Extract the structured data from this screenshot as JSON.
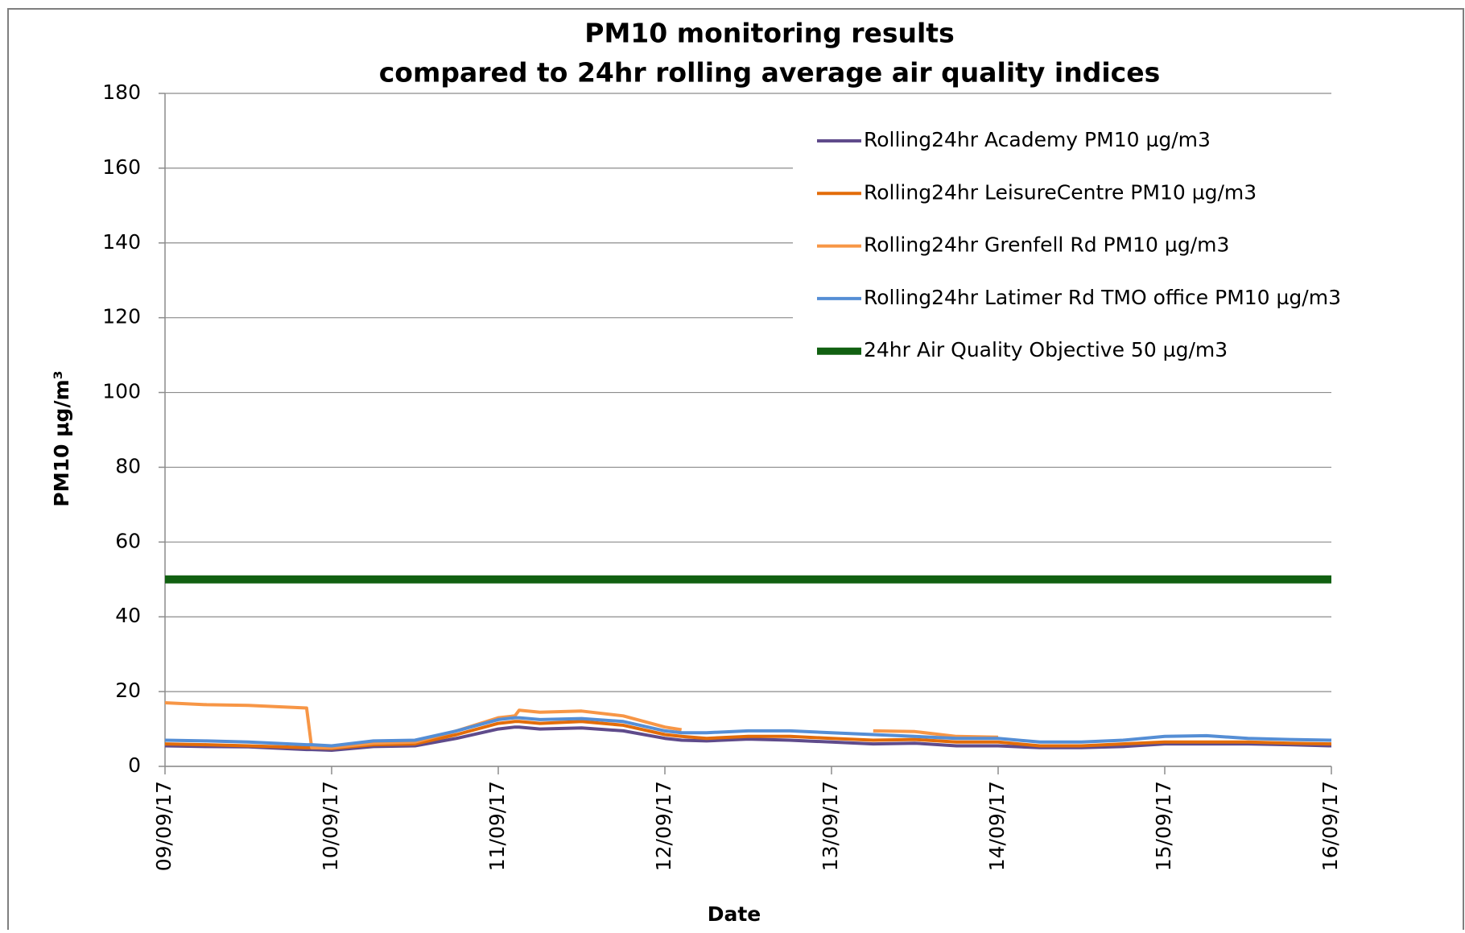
{
  "chart_data": {
    "type": "line",
    "title": [
      "PM10 monitoring results",
      "compared to 24hr rolling average air quality indices"
    ],
    "xlabel": "Date",
    "ylabel": "PM10 µg/m³",
    "x": [
      0,
      0.25,
      0.5,
      0.85,
      0.88,
      1,
      1.25,
      1.5,
      1.75,
      2,
      2.1,
      2.125,
      2.25,
      2.5,
      2.75,
      3,
      3.1,
      3.25,
      3.5,
      3.75,
      4,
      4.25,
      4.5,
      4.75,
      5,
      5.25,
      5.5,
      5.75,
      6,
      6.25,
      6.5,
      6.75,
      7
    ],
    "xlim": [
      0,
      7
    ],
    "xticks": [
      {
        "value": 0,
        "label": "09/09/17"
      },
      {
        "value": 1,
        "label": "10/09/17"
      },
      {
        "value": 2,
        "label": "11/09/17"
      },
      {
        "value": 3,
        "label": "12/09/17"
      },
      {
        "value": 4,
        "label": "13/09/17"
      },
      {
        "value": 5,
        "label": "14/09/17"
      },
      {
        "value": 6,
        "label": "15/09/17"
      },
      {
        "value": 7,
        "label": "16/09/17"
      }
    ],
    "ylim": [
      0,
      180
    ],
    "yticks": [
      0,
      20,
      40,
      60,
      80,
      100,
      120,
      140,
      160,
      180
    ],
    "grid": true,
    "series": [
      {
        "name": "Rolling24hr Academy PM10 µg/m3",
        "color": "#5f4b8b",
        "values": [
          5.5,
          5.3,
          5.2,
          4.5,
          4.5,
          4.3,
          5.3,
          5.5,
          7.5,
          10,
          10.5,
          10.5,
          10,
          10.3,
          9.5,
          7.5,
          7,
          6.8,
          7.3,
          7,
          6.5,
          6,
          6.2,
          5.5,
          5.5,
          5,
          5,
          5.3,
          6,
          6,
          6,
          5.8,
          5.5
        ]
      },
      {
        "name": "Rolling24hr LeisureCentre PM10 µg/m3",
        "color": "#e36c09",
        "values": [
          6,
          5.8,
          5.5,
          5,
          5,
          4.8,
          5.8,
          6,
          8.5,
          11.5,
          12,
          12,
          11.5,
          12,
          11,
          8.5,
          8,
          7.5,
          8,
          8,
          7.5,
          7,
          7.2,
          6.5,
          6.5,
          5.5,
          5.5,
          6,
          6.5,
          6.5,
          6.5,
          6.2,
          6
        ]
      },
      {
        "name": "Rolling24hr Grenfell Rd PM10 µg/m3",
        "color": "#f79646",
        "values": [
          17,
          16.5,
          16.3,
          15.6,
          5,
          5,
          6.2,
          6.5,
          9.5,
          13,
          13.5,
          15,
          14.5,
          14.8,
          13.5,
          10.5,
          9.8,
          null,
          null,
          null,
          null,
          9.5,
          9.3,
          8,
          7.8,
          null,
          null,
          null,
          null,
          null,
          null,
          null,
          null
        ]
      },
      {
        "name": "Rolling24hr Latimer Rd TMO office PM10 µg/m3",
        "color": "#558ed5",
        "values": [
          7,
          6.8,
          6.5,
          5.8,
          5.8,
          5.5,
          6.8,
          7,
          9.5,
          12.5,
          13,
          13,
          12.5,
          12.8,
          12,
          9.5,
          9,
          9,
          9.5,
          9.5,
          9,
          8.5,
          8,
          7.5,
          7.5,
          6.5,
          6.5,
          7,
          8,
          8.2,
          7.5,
          7.2,
          7
        ]
      },
      {
        "name": "24hr Air Quality Objective 50 µg/m3",
        "color": "#116011",
        "x": [
          0,
          7
        ],
        "values": [
          50,
          50
        ]
      }
    ]
  }
}
